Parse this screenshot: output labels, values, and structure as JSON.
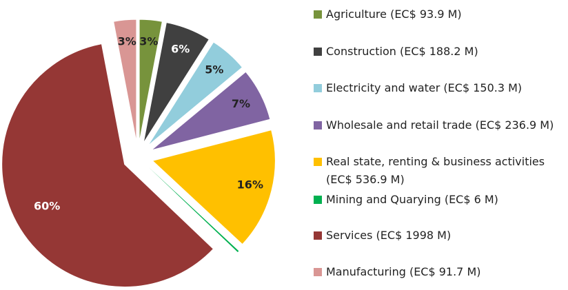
{
  "chart_data": {
    "type": "pie",
    "categories": [
      "Agriculture (EC$ 93.9 M)",
      "Construction (EC$ 188.2 M)",
      "Electricity and water (EC$ 150.3 M)",
      "Wholesale and retail trade (EC$ 236.9 M)",
      "Real state, renting & business activities (EC$ 536.9 M)",
      "Mining and Quarying (EC$ 6 M)",
      "Services (EC$ 1998 M)",
      "Manufacturing (EC$ 91.7 M)"
    ],
    "values": [
      3,
      6,
      5,
      7,
      16,
      0.2,
      60,
      3
    ],
    "value_labels": [
      "3%",
      "6%",
      "5%",
      "7%",
      "16%",
      null,
      "60%",
      "3%"
    ],
    "colors": [
      "#77933c",
      "#404040",
      "#92cddc",
      "#8064a2",
      "#ffc000",
      "#00b050",
      "#953735",
      "#d99694"
    ]
  }
}
